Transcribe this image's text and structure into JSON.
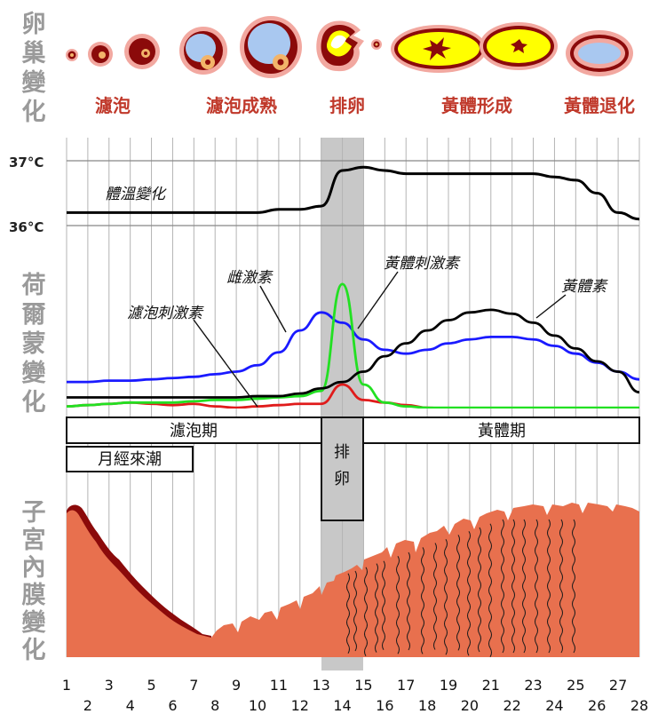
{
  "side_labels": {
    "ovary": "卵巢變化",
    "hormone": "荷爾蒙變化",
    "endometrium": "子宮內膜變化"
  },
  "ovary_stages": {
    "follicle": "濾泡",
    "follicle_mature": "濾泡成熟",
    "ovulation": "排卵",
    "corpus_luteum_formation": "黃體形成",
    "corpus_luteum_regression": "黃體退化"
  },
  "temperature": {
    "high": "37°C",
    "low": "36°C",
    "label": "體溫變化"
  },
  "hormones": {
    "estrogen": "雌激素",
    "fsh": "濾泡刺激素",
    "lh": "黃體刺激素",
    "progesterone": "黃體素"
  },
  "phases": {
    "follicular": "濾泡期",
    "menstruation": "月經來潮",
    "ovulation": "排卵",
    "luteal": "黃體期"
  },
  "days": [
    "1",
    "2",
    "3",
    "4",
    "5",
    "6",
    "7",
    "8",
    "9",
    "10",
    "11",
    "12",
    "13",
    "14",
    "15",
    "16",
    "17",
    "18",
    "19",
    "20",
    "21",
    "22",
    "23",
    "24",
    "25",
    "26",
    "27",
    "28"
  ],
  "colors": {
    "estrogen": "#1a1aff",
    "fsh": "#e01b1b",
    "lh": "#22e022",
    "progesterone": "#000000",
    "temperature": "#000000",
    "ovulation_band": "#c8c8c8",
    "endometrium": "#e8704e",
    "endometrium_dark": "#8b0a0a"
  },
  "chart_data": {
    "type": "line",
    "x": [
      1,
      2,
      3,
      4,
      5,
      6,
      7,
      8,
      9,
      10,
      11,
      12,
      13,
      14,
      15,
      16,
      17,
      18,
      19,
      20,
      21,
      22,
      23,
      24,
      25,
      26,
      27,
      28
    ],
    "series": [
      {
        "name": "體溫變化",
        "values": [
          36.2,
          36.2,
          36.2,
          36.2,
          36.2,
          36.2,
          36.2,
          36.2,
          36.2,
          36.2,
          36.25,
          36.25,
          36.3,
          36.85,
          36.9,
          36.85,
          36.8,
          36.8,
          36.8,
          36.8,
          36.8,
          36.8,
          36.8,
          36.75,
          36.7,
          36.5,
          36.2,
          36.1
        ]
      },
      {
        "name": "雌激素",
        "values": [
          22,
          22,
          23,
          23,
          24,
          25,
          26,
          28,
          30,
          35,
          45,
          62,
          76,
          68,
          55,
          47,
          44,
          47,
          52,
          55,
          57,
          57,
          55,
          50,
          44,
          37,
          30,
          24
        ]
      },
      {
        "name": "濾泡刺激素",
        "values": [
          3,
          4,
          5,
          6,
          5,
          4,
          5,
          3,
          2,
          3,
          4,
          5,
          5,
          20,
          8,
          6,
          4,
          2,
          1,
          1,
          1,
          1,
          1,
          1,
          1,
          1,
          1,
          1
        ]
      },
      {
        "name": "黃體刺激素",
        "values": [
          3,
          4,
          5,
          6,
          6,
          6,
          7,
          8,
          8,
          9,
          10,
          11,
          15,
          98,
          20,
          6,
          3,
          2,
          2,
          2,
          2,
          2,
          2,
          2,
          2,
          2,
          2,
          2
        ]
      },
      {
        "name": "黃體素",
        "values": [
          10,
          10,
          10,
          10,
          10,
          10,
          10,
          10,
          10,
          11,
          11,
          13,
          17,
          22,
          30,
          42,
          52,
          62,
          70,
          76,
          78,
          75,
          68,
          58,
          48,
          38,
          30,
          14
        ]
      }
    ]
  }
}
